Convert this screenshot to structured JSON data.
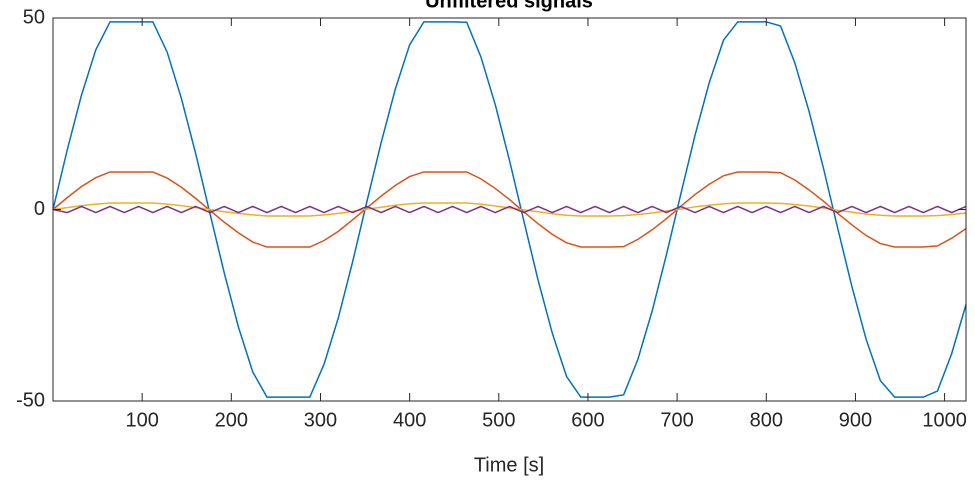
{
  "chart_data": {
    "type": "line",
    "title": "Unfiltered signals",
    "xlabel": "Time [s]",
    "xlim": [
      0,
      1024
    ],
    "ylim": [
      -50,
      50
    ],
    "xticks": [
      100,
      200,
      300,
      400,
      500,
      600,
      700,
      800,
      900,
      1000
    ],
    "yticks": [
      -50,
      0,
      50
    ],
    "grid": false,
    "x": [
      0,
      16,
      32,
      48,
      64,
      80,
      96,
      112,
      128,
      144,
      160,
      176,
      192,
      208,
      224,
      240,
      256,
      272,
      288,
      304,
      320,
      336,
      352,
      368,
      384,
      400,
      416,
      432,
      448,
      464,
      480,
      496,
      512,
      528,
      544,
      560,
      576,
      592,
      608,
      624,
      640,
      656,
      672,
      688,
      704,
      720,
      736,
      752,
      768,
      784,
      800,
      816,
      832,
      848,
      864,
      880,
      896,
      912,
      928,
      944,
      960,
      976,
      992,
      1008,
      1024
    ],
    "series": [
      {
        "color": "#0072BD",
        "values": [
          0,
          15.6,
          29.9,
          41.7,
          49,
          49,
          49,
          49,
          41.1,
          29.0,
          14.6,
          -1.0,
          -16.5,
          -30.7,
          -42.4,
          -49,
          -49,
          -49,
          -49,
          -40.4,
          -28.3,
          -13.7,
          2.0,
          17.4,
          31.5,
          43.0,
          49,
          49,
          49,
          48.9,
          39.8,
          27.4,
          12.8,
          -2.9,
          -18.4,
          -32.3,
          -43.6,
          -49,
          -49,
          -49,
          -48.4,
          -39.1,
          -26.5,
          -11.8,
          3.9,
          19.3,
          33.1,
          44.2,
          49,
          49,
          49,
          47.9,
          38.3,
          25.6,
          10.9,
          -4.8,
          -20.1,
          -33.9,
          -44.7,
          -49,
          -49,
          -49,
          -47.4,
          -37.6,
          -24.8
        ]
      },
      {
        "color": "#D95319",
        "values": [
          0,
          3.1,
          6.0,
          8.3,
          9.8,
          9.8,
          9.8,
          9.8,
          8.2,
          5.8,
          2.9,
          -0.2,
          -3.3,
          -6.1,
          -8.5,
          -9.8,
          -9.8,
          -9.8,
          -9.8,
          -8.1,
          -5.7,
          -2.7,
          0.4,
          3.5,
          6.3,
          8.6,
          9.8,
          9.8,
          9.8,
          9.8,
          8.0,
          5.5,
          2.6,
          -0.6,
          -3.7,
          -6.5,
          -8.7,
          -9.8,
          -9.8,
          -9.8,
          -9.7,
          -7.8,
          -5.3,
          -2.4,
          0.8,
          3.9,
          6.6,
          8.8,
          9.8,
          9.8,
          9.8,
          9.6,
          7.7,
          5.1,
          2.2,
          -1.0,
          -4.0,
          -6.8,
          -8.9,
          -9.8,
          -9.8,
          -9.8,
          -9.5,
          -7.5,
          -5.0
        ]
      },
      {
        "color": "#EDB120",
        "values": [
          0,
          0.5,
          1.0,
          1.4,
          1.7,
          1.7,
          1.7,
          1.7,
          1.4,
          1.0,
          0.5,
          0,
          -0.6,
          -1.0,
          -1.4,
          -1.7,
          -1.7,
          -1.7,
          -1.7,
          -1.4,
          -1.0,
          -0.5,
          0.1,
          0.6,
          1.1,
          1.5,
          1.7,
          1.7,
          1.7,
          1.7,
          1.4,
          0.9,
          0.4,
          -0.1,
          -0.6,
          -1.1,
          -1.5,
          -1.7,
          -1.7,
          -1.7,
          -1.6,
          -1.3,
          -0.9,
          -0.4,
          0.1,
          0.7,
          1.1,
          1.5,
          1.7,
          1.7,
          1.7,
          1.6,
          1.3,
          0.9,
          0.4,
          -0.2,
          -0.7,
          -1.2,
          -1.5,
          -1.7,
          -1.7,
          -1.7,
          -1.6,
          -1.3,
          -0.9
        ]
      },
      {
        "color": "#7E2F8E",
        "values": [
          0,
          -0.8,
          0.8,
          -0.8,
          0.8,
          -0.8,
          0.8,
          -0.8,
          0.8,
          -0.8,
          0.8,
          -0.8,
          0.8,
          -0.8,
          0.8,
          -0.8,
          0.8,
          -0.8,
          0.8,
          -0.8,
          0.8,
          -0.8,
          0.8,
          -0.8,
          0.8,
          -0.8,
          0.8,
          -0.8,
          0.8,
          -0.8,
          0.8,
          -0.8,
          0.8,
          -0.8,
          0.8,
          -0.8,
          0.8,
          -0.8,
          0.8,
          -0.8,
          0.8,
          -0.8,
          0.8,
          -0.8,
          0.8,
          -0.8,
          0.8,
          -0.8,
          0.8,
          -0.8,
          0.8,
          -0.8,
          0.8,
          -0.8,
          0.8,
          -0.8,
          0.8,
          -0.8,
          0.8,
          -0.8,
          0.8,
          -0.8,
          0.8,
          -0.8,
          0.8
        ]
      }
    ]
  }
}
